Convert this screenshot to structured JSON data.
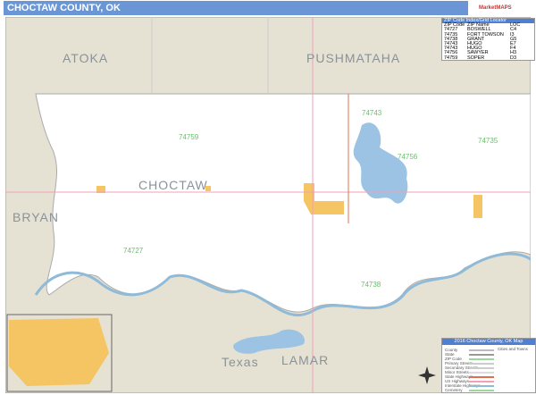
{
  "title": "CHOCTAW COUNTY, OK",
  "logo_text": "MarketMAPS",
  "map_labels": {
    "atoka": "ATOKA",
    "pushmataha": "PUSHMATAHA",
    "bryan": "BRYAN",
    "choctaw": "CHOCTAW",
    "texas": "Texas",
    "lamar": "LAMAR"
  },
  "zip_labels": [
    "74743",
    "74759",
    "74756",
    "74735",
    "74727",
    "74738"
  ],
  "zip_index": {
    "title": "ZIP Code Index/Grid Locator",
    "headers": [
      "ZIP Code",
      "ZIP Name",
      "LOC"
    ],
    "rows": [
      [
        "74727",
        "BOSWELL",
        "C4"
      ],
      [
        "74735",
        "FORT TOWSON",
        "I3"
      ],
      [
        "74738",
        "GRANT",
        "G5"
      ],
      [
        "74743",
        "HUGO",
        "E7"
      ],
      [
        "74743",
        "HUGO",
        "F4"
      ],
      [
        "74756",
        "SAWYER",
        "H3"
      ],
      [
        "74759",
        "SOPER",
        "D3"
      ]
    ]
  },
  "legend": {
    "title": "2016 Choctaw County, OK Map",
    "cities_header": "Cities and Towns",
    "items": [
      "County",
      "State",
      "ZIP Code",
      "Primary Streets",
      "Secondary Streets",
      "Minor Streets",
      "State Highways",
      "US Highways",
      "Interstate Highways",
      "Cemetery"
    ]
  },
  "colors": {
    "title_bar": "#6a96d6",
    "outside": "#e6e2d3",
    "county": "#ffffff",
    "water": "#9cc3e4",
    "town": "#f5c463",
    "zip_boundary": "#9cd89c"
  }
}
